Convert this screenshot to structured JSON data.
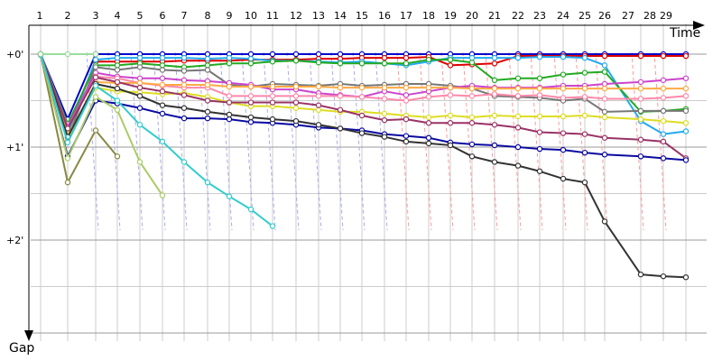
{
  "chart_data": {
    "type": "line",
    "title": "",
    "xlabel": "Time",
    "ylabel": "Gap",
    "x_tick_labels": [
      "1",
      "2",
      "3",
      "4",
      "5",
      "6",
      "7",
      "8",
      "9",
      "10",
      "11",
      "12",
      "13",
      "14",
      "15",
      "16",
      "17",
      "18",
      "19",
      "20",
      "21",
      "22",
      "23",
      "24",
      "25",
      "26",
      "27",
      "28",
      "29"
    ],
    "y_tick_labels": [
      "+0'",
      "+1'",
      "+2'"
    ],
    "ylim": [
      0,
      3.2
    ],
    "y_unit": "minutes",
    "grid": true,
    "legend": "none",
    "series": [
      {
        "color": "#0000cc",
        "values": [
          0.0,
          0.7,
          0.0,
          0.0,
          0.0,
          0.0,
          0.0,
          0.0,
          0.0,
          0.0,
          0.0,
          0.0,
          0.0,
          0.0,
          0.0,
          0.0,
          0.0,
          0.0,
          0.0,
          0.0,
          0.0,
          0.0,
          0.0,
          0.0,
          0.0,
          0.0,
          0.0,
          0.0,
          0.0
        ]
      },
      {
        "color": "#dd0000",
        "values": [
          0.0,
          0.8,
          0.08,
          0.08,
          0.08,
          0.08,
          0.07,
          0.07,
          0.07,
          0.06,
          0.06,
          0.06,
          0.05,
          0.05,
          0.04,
          0.04,
          0.04,
          0.03,
          0.12,
          0.11,
          0.1,
          0.02,
          0.02,
          0.02,
          0.02,
          0.02,
          0.02,
          0.02,
          0.02
        ]
      },
      {
        "color": "#22aaee",
        "values": [
          0.01,
          0.85,
          0.06,
          0.04,
          0.04,
          0.04,
          0.04,
          0.05,
          0.04,
          0.05,
          0.07,
          0.07,
          0.08,
          0.09,
          0.08,
          0.1,
          0.12,
          0.08,
          0.04,
          0.04,
          0.04,
          0.04,
          0.03,
          0.03,
          0.04,
          0.12,
          0.72,
          0.86,
          0.83
        ]
      },
      {
        "color": "#22aa22",
        "values": [
          0.0,
          0.75,
          0.12,
          0.12,
          0.1,
          0.12,
          0.14,
          0.12,
          0.1,
          0.1,
          0.08,
          0.07,
          0.09,
          0.1,
          0.1,
          0.1,
          0.1,
          0.06,
          0.06,
          0.09,
          0.28,
          0.26,
          0.26,
          0.22,
          0.2,
          0.19,
          0.62,
          0.61,
          0.59
        ]
      },
      {
        "color": "#777777",
        "values": [
          0.0,
          0.9,
          0.14,
          0.17,
          0.14,
          0.17,
          0.18,
          0.17,
          0.33,
          0.35,
          0.32,
          0.33,
          0.34,
          0.32,
          0.34,
          0.33,
          0.32,
          0.32,
          0.34,
          0.37,
          0.45,
          0.46,
          0.47,
          0.5,
          0.48,
          0.62,
          0.61,
          0.61,
          0.61
        ]
      },
      {
        "color": "#cc44cc",
        "values": [
          0.0,
          0.78,
          0.2,
          0.24,
          0.26,
          0.26,
          0.28,
          0.29,
          0.31,
          0.33,
          0.38,
          0.38,
          0.42,
          0.44,
          0.46,
          0.4,
          0.44,
          0.4,
          0.36,
          0.34,
          0.36,
          0.36,
          0.36,
          0.34,
          0.34,
          0.32,
          0.3,
          0.28,
          0.26
        ]
      },
      {
        "color": "#ff88aa",
        "values": [
          0.0,
          0.8,
          0.24,
          0.26,
          0.31,
          0.34,
          0.36,
          0.36,
          0.45,
          0.45,
          0.45,
          0.45,
          0.45,
          0.45,
          0.46,
          0.48,
          0.5,
          0.46,
          0.44,
          0.45,
          0.43,
          0.45,
          0.44,
          0.47,
          0.46,
          0.48,
          0.48,
          0.47,
          0.45
        ]
      },
      {
        "color": "#ffaa44",
        "values": [
          0.0,
          0.92,
          0.3,
          0.31,
          0.31,
          0.33,
          0.33,
          0.33,
          0.35,
          0.35,
          0.35,
          0.35,
          0.35,
          0.36,
          0.36,
          0.36,
          0.36,
          0.36,
          0.36,
          0.37,
          0.37,
          0.37,
          0.37,
          0.37,
          0.37,
          0.37,
          0.37,
          0.37,
          0.37
        ]
      },
      {
        "color": "#dddd22",
        "values": [
          0.0,
          0.87,
          0.36,
          0.4,
          0.41,
          0.43,
          0.42,
          0.46,
          0.52,
          0.56,
          0.56,
          0.58,
          0.6,
          0.62,
          0.62,
          0.64,
          0.66,
          0.68,
          0.66,
          0.68,
          0.66,
          0.67,
          0.67,
          0.67,
          0.66,
          0.68,
          0.7,
          0.72,
          0.74
        ]
      },
      {
        "color": "#993366",
        "values": [
          0.0,
          0.8,
          0.25,
          0.3,
          0.36,
          0.4,
          0.44,
          0.5,
          0.52,
          0.52,
          0.52,
          0.52,
          0.55,
          0.6,
          0.66,
          0.71,
          0.7,
          0.74,
          0.74,
          0.74,
          0.76,
          0.79,
          0.84,
          0.85,
          0.86,
          0.9,
          0.92,
          0.94,
          1.12
        ]
      },
      {
        "color": "#0a0aa0",
        "values": [
          0.0,
          1.1,
          0.5,
          0.53,
          0.58,
          0.64,
          0.69,
          0.69,
          0.7,
          0.73,
          0.74,
          0.76,
          0.79,
          0.8,
          0.82,
          0.86,
          0.88,
          0.9,
          0.95,
          0.97,
          0.98,
          1.0,
          1.02,
          1.03,
          1.06,
          1.08,
          1.1,
          1.12,
          1.14
        ]
      },
      {
        "color": "#333333",
        "values": [
          0.0,
          0.89,
          0.32,
          0.37,
          0.45,
          0.55,
          0.58,
          0.62,
          0.65,
          0.68,
          0.7,
          0.72,
          0.76,
          0.8,
          0.85,
          0.89,
          0.94,
          0.96,
          0.98,
          1.1,
          1.16,
          1.2,
          1.26,
          1.34,
          1.38,
          1.8,
          2.37,
          2.39,
          2.4
        ]
      },
      {
        "color": "#888844",
        "values": [
          0.0,
          1.38,
          0.82,
          1.1
        ]
      },
      {
        "color": "#aacc66",
        "values": [
          0.0,
          1.12,
          0.46,
          0.6,
          1.16,
          1.52
        ]
      },
      {
        "color": "#33cccc",
        "values": [
          0.0,
          0.95,
          0.34,
          0.5,
          0.76,
          0.94,
          1.16,
          1.38,
          1.53,
          1.67,
          1.85
        ]
      },
      {
        "color": "#99dd99",
        "values": [
          0.0,
          0.0,
          0.0
        ]
      }
    ]
  }
}
